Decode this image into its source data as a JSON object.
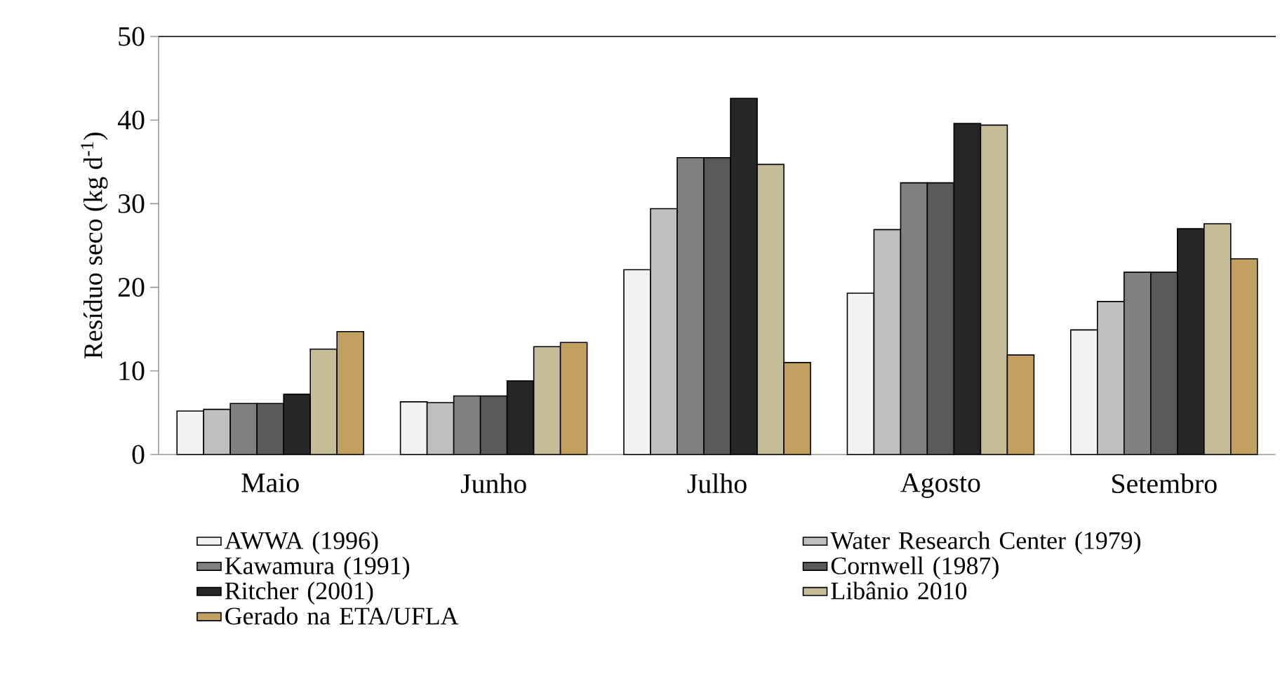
{
  "chart_data": {
    "type": "bar",
    "ylabel": "Resíduo seco (kg  d$^{-1}$)",
    "categories": [
      "Maio",
      "Junho",
      "Julho",
      "Agosto",
      "Setembro"
    ],
    "series": [
      {
        "name": "AWWA (1996)",
        "color": "#f2f2f2",
        "values": [
          5.2,
          6.3,
          22.1,
          19.3,
          14.9
        ]
      },
      {
        "name": "Water Research Center (1979)",
        "color": "#bfbfbf",
        "values": [
          5.4,
          6.2,
          29.4,
          26.9,
          18.3
        ]
      },
      {
        "name": "Kawamura (1991)",
        "color": "#808080",
        "values": [
          6.1,
          7.0,
          35.5,
          32.5,
          21.8
        ]
      },
      {
        "name": "Cornwell (1987)",
        "color": "#595959",
        "values": [
          6.1,
          7.0,
          35.5,
          32.5,
          21.8
        ]
      },
      {
        "name": "Ritcher (2001)",
        "color": "#262626",
        "values": [
          7.2,
          8.8,
          42.6,
          39.6,
          27.0
        ]
      },
      {
        "name": "Libânio 2010",
        "color": "#c4bd97",
        "values": [
          12.6,
          12.9,
          34.7,
          39.4,
          27.6
        ]
      },
      {
        "name": "Gerado na ETA/UFLA",
        "color": "#c2a060",
        "values": [
          14.7,
          13.4,
          11.0,
          11.9,
          23.4
        ]
      }
    ],
    "ylim": [
      0,
      50
    ],
    "yticks": [
      0,
      10,
      20,
      30,
      40,
      50
    ],
    "legend": "bottom"
  }
}
